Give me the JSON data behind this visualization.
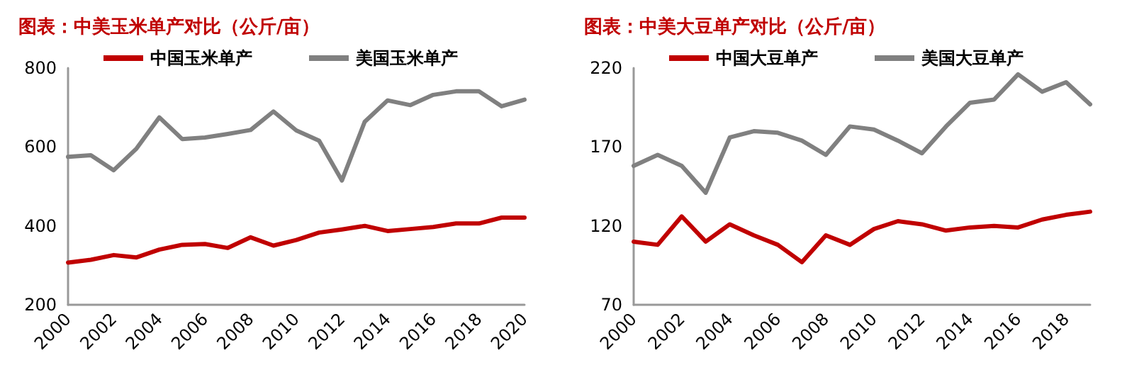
{
  "chart_data": [
    {
      "type": "line",
      "title": "图表：中美玉米单产对比（公斤/亩）",
      "categories": [
        "2000",
        null,
        "2002",
        null,
        "2004",
        null,
        "2006",
        null,
        "2008",
        null,
        "2010",
        null,
        "2012",
        null,
        "2014",
        null,
        "2016",
        null,
        "2018",
        null,
        "2020"
      ],
      "series": [
        {
          "name": "中国玉米单产",
          "color": "#c00000",
          "values": [
            307,
            314,
            326,
            320,
            340,
            352,
            354,
            344,
            371,
            350,
            364,
            383,
            391,
            400,
            387,
            392,
            397,
            406,
            406,
            421,
            421
          ]
        },
        {
          "name": "美国玉米单产",
          "color": "#808080",
          "values": [
            575,
            579,
            541,
            596,
            675,
            620,
            624,
            633,
            643,
            690,
            642,
            616,
            515,
            664,
            718,
            706,
            732,
            741,
            741,
            703,
            720
          ]
        }
      ],
      "ylim": [
        200,
        800
      ],
      "yticks": [
        200,
        400,
        600,
        800
      ],
      "grid": false,
      "legend": "top",
      "marker": "none",
      "line_style": "solid"
    },
    {
      "type": "line",
      "title": "图表：中美大豆单产对比（公斤/亩）",
      "categories": [
        "2000",
        null,
        "2002",
        null,
        "2004",
        null,
        "2006",
        null,
        "2008",
        null,
        "2010",
        null,
        "2012",
        null,
        "2014",
        null,
        "2016",
        null,
        "2018",
        null
      ],
      "series": [
        {
          "name": "中国大豆单产",
          "color": "#c00000",
          "values": [
            110,
            108,
            126,
            110,
            121,
            114,
            108,
            97,
            114,
            108,
            118,
            123,
            121,
            117,
            119,
            120,
            119,
            124,
            127,
            129
          ]
        },
        {
          "name": "美国大豆单产",
          "color": "#808080",
          "values": [
            158,
            165,
            158,
            141,
            176,
            180,
            179,
            174,
            165,
            183,
            181,
            174,
            166,
            183,
            198,
            200,
            216,
            205,
            211,
            197
          ]
        }
      ],
      "ylim": [
        70,
        220
      ],
      "yticks": [
        70,
        120,
        170,
        220
      ],
      "grid": false,
      "legend": "top",
      "marker": "none",
      "line_style": "solid"
    }
  ]
}
